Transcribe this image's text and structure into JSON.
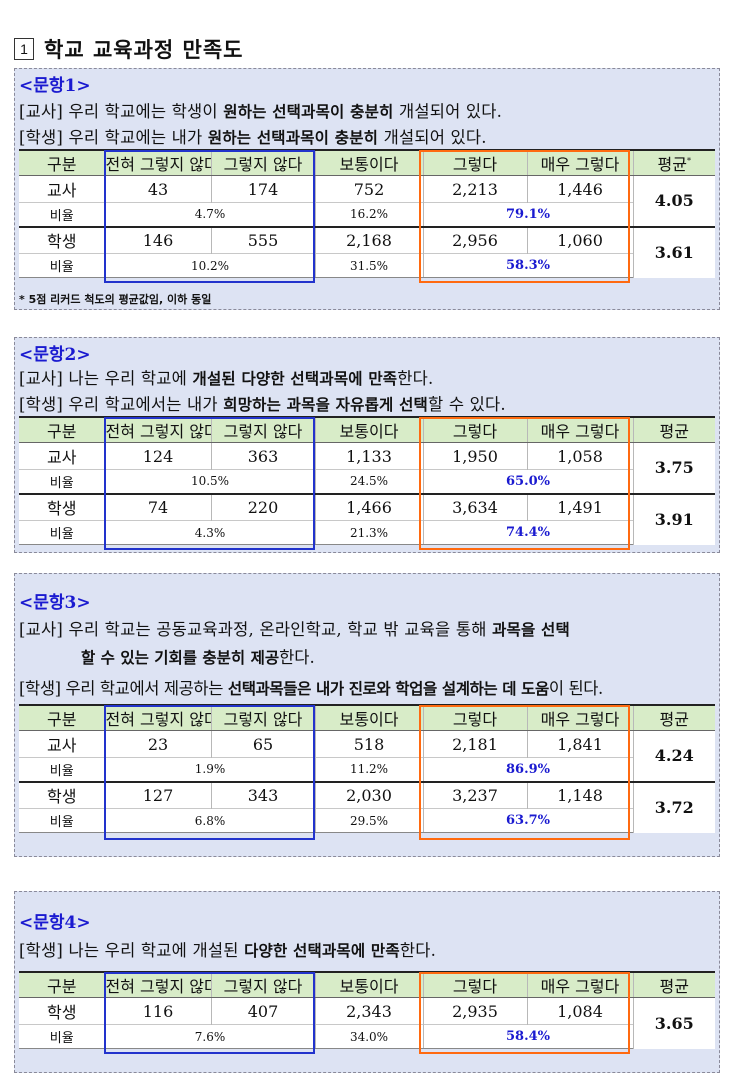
{
  "title": {
    "num": "1",
    "text": "학교 교육과정 만족도"
  },
  "headers": [
    "구분",
    "전혀 그렇지 않다",
    "그렇지 않다",
    "보통이다",
    "그렇다",
    "매우 그렇다",
    "평균"
  ],
  "avg_mark": "*",
  "ratio_label": "비율",
  "questions": [
    {
      "title": "<문항1>",
      "lines": [
        {
          "pre": "[교사] 우리 학교에는 학생이 ",
          "bold": "원하는 선택과목이 충분히",
          "post": " 개설되어 있다."
        },
        {
          "pre": "[학생] 우리 학교에는 내가 ",
          "bold": "원하는 선택과목이 충분히",
          "post": " 개설되어 있다."
        }
      ],
      "rows": [
        {
          "group": "교사",
          "values": [
            "43",
            "174",
            "752",
            "2,213",
            "1,446"
          ],
          "neg": "4.7%",
          "neutral": "16.2%",
          "pos": "79.1%",
          "avg": "4.05"
        },
        {
          "group": "학생",
          "values": [
            "146",
            "555",
            "2,168",
            "2,956",
            "1,060"
          ],
          "neg": "10.2%",
          "neutral": "31.5%",
          "pos": "58.3%",
          "avg": "3.61"
        }
      ],
      "footnote": "* 5점 리커드 척도의 평균값임, 이하 동일"
    },
    {
      "title": "<문항2>",
      "lines": [
        {
          "pre": "[교사] 나는 우리 학교에 ",
          "bold": "개설된 다양한 선택과목에 만족",
          "post": "한다."
        },
        {
          "pre": "[학생] 우리 학교에서는 내가 ",
          "bold": "희망하는 과목을 자유롭게 선택",
          "post": "할 수 있다."
        }
      ],
      "rows": [
        {
          "group": "교사",
          "values": [
            "124",
            "363",
            "1,133",
            "1,950",
            "1,058"
          ],
          "neg": "10.5%",
          "neutral": "24.5%",
          "pos": "65.0%",
          "avg": "3.75"
        },
        {
          "group": "학생",
          "values": [
            "74",
            "220",
            "1,466",
            "3,634",
            "1,491"
          ],
          "neg": "4.3%",
          "neutral": "21.3%",
          "pos": "74.4%",
          "avg": "3.91"
        }
      ]
    },
    {
      "title": "<문항3>",
      "lines": [
        {
          "pre": "[교사] 우리 학교는 공동교육과정, 온라인학교, 학교 밖 교육을 통해 ",
          "bold": "과목을 선택",
          "post": ""
        },
        {
          "pre": "",
          "bold": "할 수 있는 기회를 충분히 제공",
          "post": "한다."
        },
        {
          "pre": "[학생] 우리 학교에서 제공하는 ",
          "bold": "선택과목들은 내가 진로와 학업을 설계하는 데 도움",
          "post": "이 된다."
        }
      ],
      "rows": [
        {
          "group": "교사",
          "values": [
            "23",
            "65",
            "518",
            "2,181",
            "1,841"
          ],
          "neg": "1.9%",
          "neutral": "11.2%",
          "pos": "86.9%",
          "avg": "4.24"
        },
        {
          "group": "학생",
          "values": [
            "127",
            "343",
            "2,030",
            "3,237",
            "1,148"
          ],
          "neg": "6.8%",
          "neutral": "29.5%",
          "pos": "63.7%",
          "avg": "3.72"
        }
      ]
    },
    {
      "title": "<문항4>",
      "lines": [
        {
          "pre": "[학생] 나는 우리 학교에 개설된 ",
          "bold": "다양한 선택과목에 만족",
          "post": "한다."
        }
      ],
      "rows": [
        {
          "group": "학생",
          "values": [
            "116",
            "407",
            "2,343",
            "2,935",
            "1,084"
          ],
          "neg": "7.6%",
          "neutral": "34.0%",
          "pos": "58.4%",
          "avg": "3.65"
        }
      ]
    }
  ]
}
